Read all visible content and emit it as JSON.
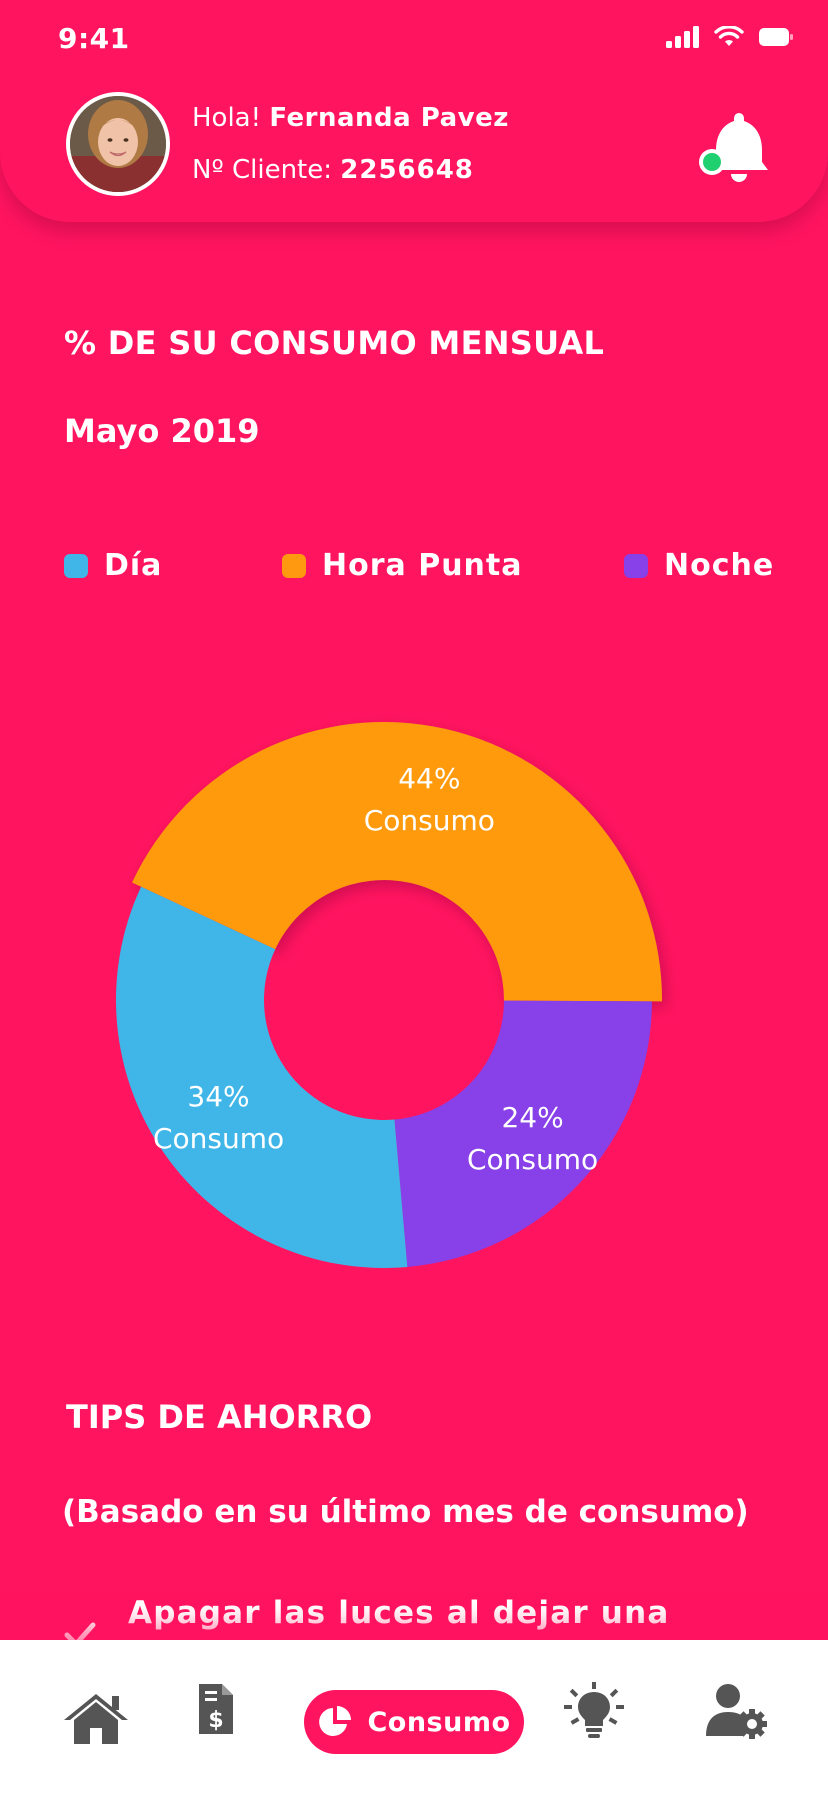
{
  "status_bar": {
    "time": "9:41"
  },
  "header": {
    "greeting_prefix": "Hola!",
    "user_name": "Fernanda Pavez",
    "client_label": "Nº Cliente:",
    "client_number": "2256648"
  },
  "consumption": {
    "title": "% DE SU CONSUMO MENSUAL",
    "period": "Mayo 2019",
    "legend": [
      {
        "label": "Día",
        "color": "#40B6E8"
      },
      {
        "label": "Hora Punta",
        "color": "#FF9A10"
      },
      {
        "label": "Noche",
        "color": "#8840E8"
      }
    ]
  },
  "chart_data": {
    "type": "pie",
    "variant": "donut",
    "categories": [
      "Día",
      "Hora Punta",
      "Noche"
    ],
    "values": [
      34,
      44,
      24
    ],
    "labels": [
      "34%",
      "44%",
      "24%"
    ],
    "slice_caption": "Consumo",
    "colors": [
      "#40B6E8",
      "#FF9A10",
      "#8840E8"
    ],
    "legend_position": "top"
  },
  "tips": {
    "title": "TIPS DE AHORRO",
    "subtitle": "(Basado en su último mes de consumo)",
    "items": [
      "Apagar las luces al dejar una"
    ]
  },
  "bottom_nav": {
    "items": [
      {
        "icon": "home-icon"
      },
      {
        "icon": "invoice-icon"
      },
      {
        "icon": "pie-chart-icon",
        "label": "Consumo",
        "active": true
      },
      {
        "icon": "lightbulb-icon"
      },
      {
        "icon": "user-settings-icon"
      }
    ]
  },
  "colors": {
    "background": "#FF1460",
    "text": "#FFFFFF",
    "nav_background": "#FFFFFF",
    "nav_icon": "#555555",
    "notification_dot": "#20D070"
  }
}
